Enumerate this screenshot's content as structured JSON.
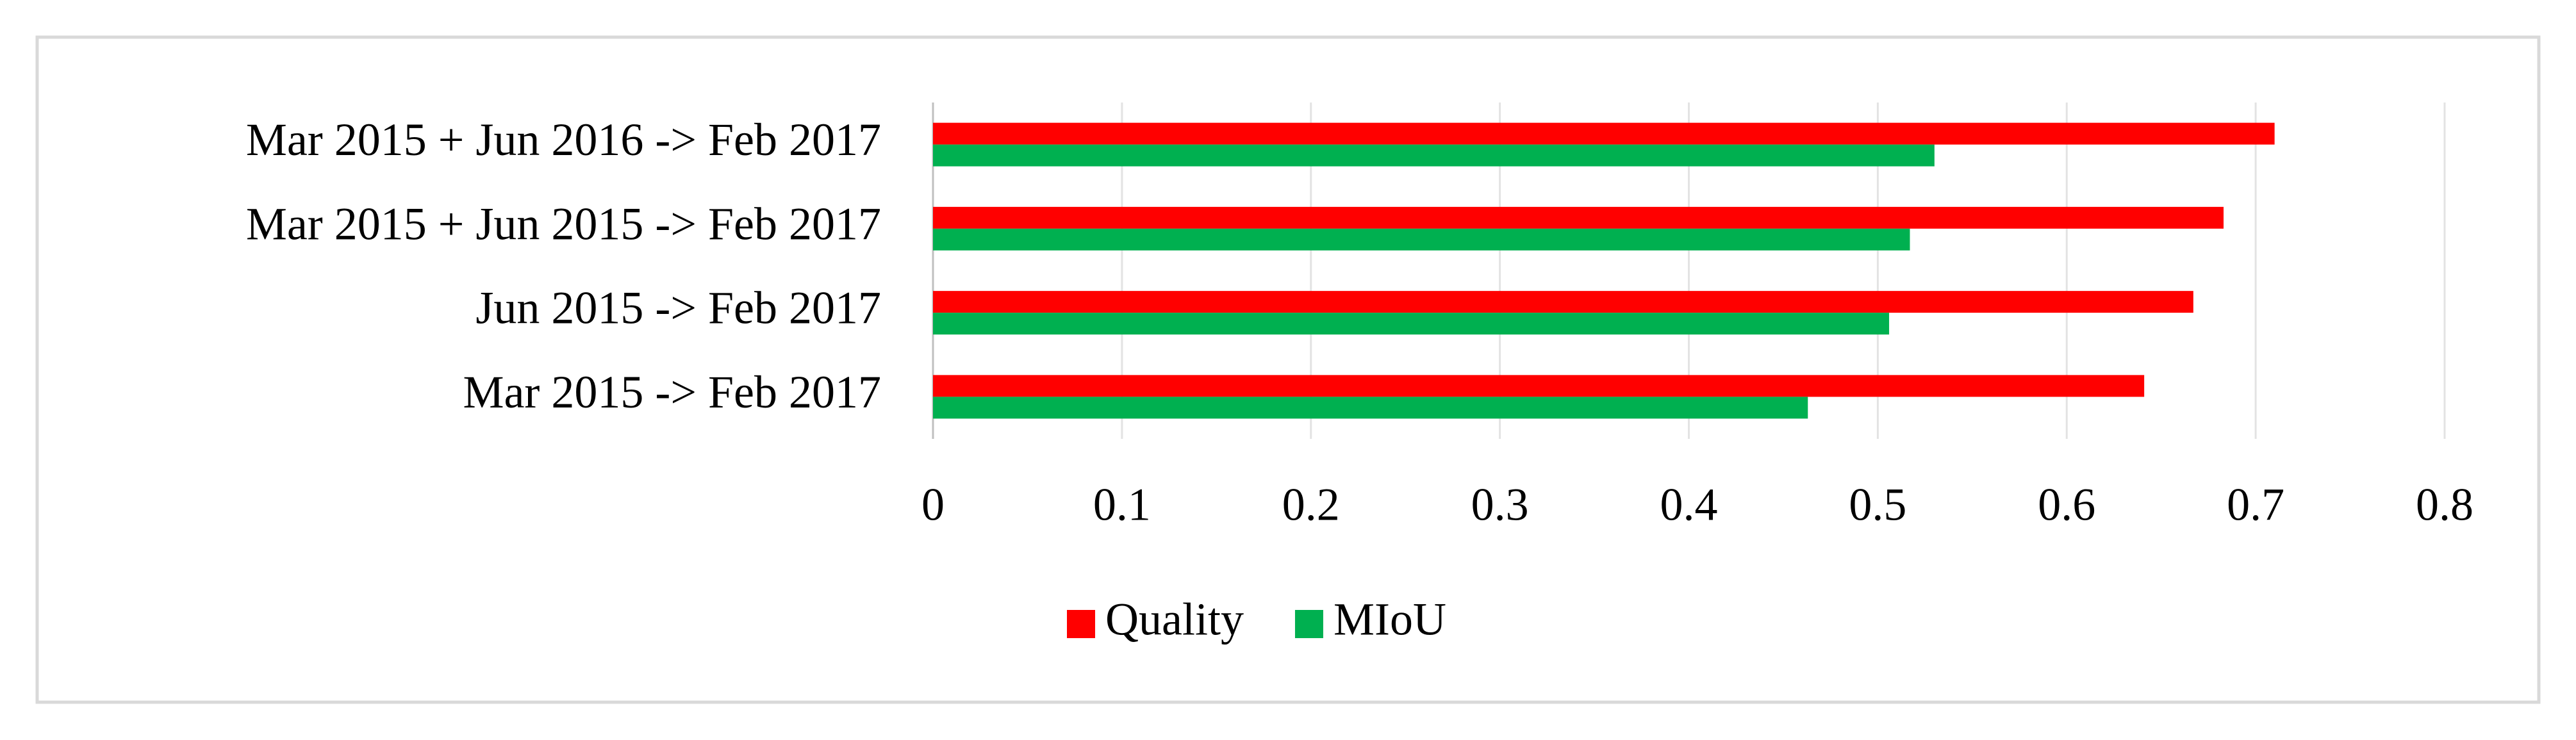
{
  "chart_data": {
    "type": "hbar",
    "categories": [
      "Mar 2015 + Jun 2016 -> Feb 2017",
      "Mar 2015 + Jun 2015 -> Feb 2017",
      "Jun 2015 -> Feb 2017",
      "Mar 2015 -> Feb 2017"
    ],
    "series": [
      {
        "name": "Quality",
        "color": "#ff0000",
        "values": [
          0.71,
          0.683,
          0.667,
          0.641
        ]
      },
      {
        "name": "MIoU",
        "color": "#00b050",
        "values": [
          0.53,
          0.517,
          0.506,
          0.463
        ]
      }
    ],
    "xlim": [
      0,
      0.8
    ],
    "xticks": [
      0,
      0.1,
      0.2,
      0.3,
      0.4,
      0.5,
      0.6,
      0.7,
      0.8
    ],
    "grid": true,
    "legend": "bottom"
  }
}
